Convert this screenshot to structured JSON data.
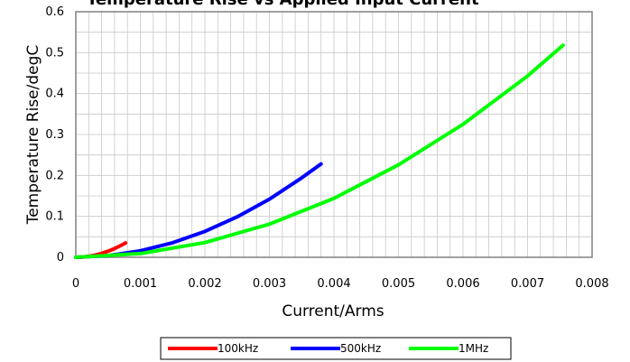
{
  "chart_data": {
    "type": "line",
    "title": "Temperature Rise vs Applied Input Current",
    "xlabel": "Current/Arms",
    "ylabel": "Temperature Rise/degC",
    "xlim": [
      0,
      0.008
    ],
    "ylim": [
      0,
      0.6
    ],
    "x_ticks": [
      "0",
      "0.001",
      "0.002",
      "0.003",
      "0.004",
      "0.005",
      "0.006",
      "0.007",
      "0.008"
    ],
    "y_ticks": [
      "0",
      "0.1",
      "0.2",
      "0.3",
      "0.4",
      "0.5",
      "0.6"
    ],
    "grid": true,
    "legend_position": "bottom",
    "series": [
      {
        "name": "100kHz",
        "color": "#ff0000",
        "points": [
          [
            0,
            0
          ],
          [
            0.0001,
            0.0006
          ],
          [
            0.0002,
            0.0024
          ],
          [
            0.0003,
            0.0053
          ],
          [
            0.0004,
            0.0095
          ],
          [
            0.0005,
            0.0148
          ],
          [
            0.0006,
            0.0213
          ],
          [
            0.0007,
            0.029
          ],
          [
            0.00077,
            0.035
          ]
        ]
      },
      {
        "name": "500kHz",
        "color": "#0000ff",
        "points": [
          [
            0,
            0
          ],
          [
            0.0005,
            0.004
          ],
          [
            0.001,
            0.0158
          ],
          [
            0.0015,
            0.0355
          ],
          [
            0.002,
            0.0632
          ],
          [
            0.0025,
            0.0988
          ],
          [
            0.003,
            0.142
          ],
          [
            0.0035,
            0.194
          ],
          [
            0.0038,
            0.228
          ]
        ]
      },
      {
        "name": "1MHz",
        "color": "#00ff00",
        "points": [
          [
            0,
            0
          ],
          [
            0.001,
            0.009
          ],
          [
            0.002,
            0.036
          ],
          [
            0.003,
            0.081
          ],
          [
            0.004,
            0.144
          ],
          [
            0.005,
            0.226
          ],
          [
            0.006,
            0.325
          ],
          [
            0.007,
            0.443
          ],
          [
            0.00755,
            0.518
          ]
        ]
      }
    ]
  }
}
